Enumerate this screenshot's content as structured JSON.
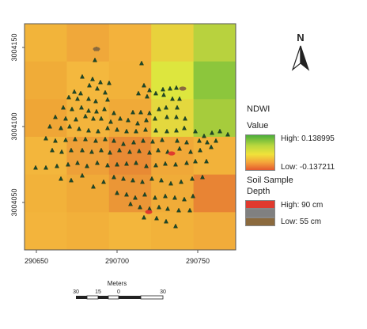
{
  "map": {
    "x_ticks": [
      "290650",
      "290700",
      "290750"
    ],
    "y_ticks": [
      "3004150",
      "3004100",
      "3004050"
    ]
  },
  "north_arrow": {
    "label": "N"
  },
  "legend": {
    "ndwi_title": "NDWI",
    "ndwi_subtitle": "Value",
    "ndwi_high": "High: 0.138995",
    "ndwi_low": "Low: -0.137211",
    "soil_title": "Soil Sample",
    "soil_subtitle": "Depth",
    "soil_high": "High: 90 cm",
    "soil_low": "Low: 55 cm",
    "colors": {
      "ndwi_high": "#4cae3a",
      "ndwi_mid": "#f0e23a",
      "ndwi_low": "#e5592e",
      "soil_high": "#e03a2e",
      "soil_mid": "#808080",
      "soil_low": "#8b6a3e"
    }
  },
  "scalebar": {
    "title": "Meters",
    "ticks": [
      "30",
      "15",
      "0",
      "30"
    ]
  },
  "raster": {
    "rows": 6,
    "cols": 5,
    "colors": [
      [
        "#f2b43a",
        "#f0a83a",
        "#f3b23c",
        "#e8d23c",
        "#b8d23e"
      ],
      [
        "#f0ac38",
        "#f4b83e",
        "#f2b23a",
        "#dde63e",
        "#8cc63c"
      ],
      [
        "#efa636",
        "#f3b43c",
        "#f0aa38",
        "#e4d83e",
        "#a6cc3c"
      ],
      [
        "#f3b63c",
        "#eea038",
        "#e88a34",
        "#f0a838",
        "#f2b23a"
      ],
      [
        "#f2b23a",
        "#f0aa38",
        "#eb9636",
        "#f0ac38",
        "#e88434"
      ],
      [
        "#f3b43c",
        "#f2b03a",
        "#f3b63c",
        "#f2b23a",
        "#f1ac3a"
      ]
    ]
  }
}
